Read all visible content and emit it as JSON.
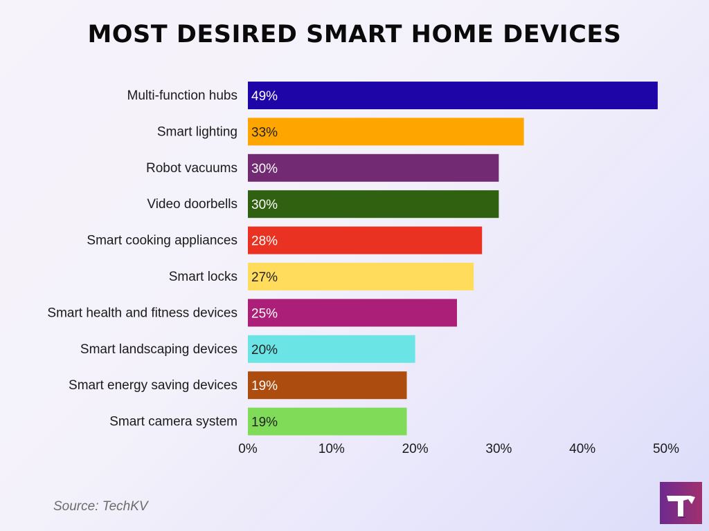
{
  "chart_data": {
    "type": "bar",
    "orientation": "horizontal",
    "title": "MOST DESIRED SMART HOME DEVICES",
    "categories": [
      "Multi-function hubs",
      "Smart lighting",
      "Robot vacuums",
      "Video doorbells",
      "Smart cooking appliances",
      "Smart locks",
      "Smart health and fitness devices",
      "Smart landscaping devices",
      "Smart energy saving devices",
      "Smart camera system"
    ],
    "values": [
      49,
      33,
      30,
      30,
      28,
      27,
      25,
      20,
      19,
      19
    ],
    "data_labels": [
      "49%",
      "33%",
      "30%",
      "30%",
      "28%",
      "27%",
      "25%",
      "20%",
      "19%",
      "19%"
    ],
    "colors": [
      "#1e05a8",
      "#ffa500",
      "#722a72",
      "#2f6110",
      "#ea3223",
      "#ffdc5c",
      "#ab1f78",
      "#6be4e6",
      "#ac4c0e",
      "#7fdb58"
    ],
    "label_colors": [
      "#ffffff",
      "#222222",
      "#ffffff",
      "#ffffff",
      "#ffffff",
      "#222222",
      "#ffffff",
      "#222222",
      "#ffffff",
      "#222222"
    ],
    "xlim": [
      0,
      50
    ],
    "xticks": [
      "0%",
      "10%",
      "20%",
      "30%",
      "40%",
      "50%"
    ],
    "grid": false,
    "xlabel": "",
    "ylabel": ""
  },
  "source": "Source: TechKV",
  "logo_text": "T"
}
